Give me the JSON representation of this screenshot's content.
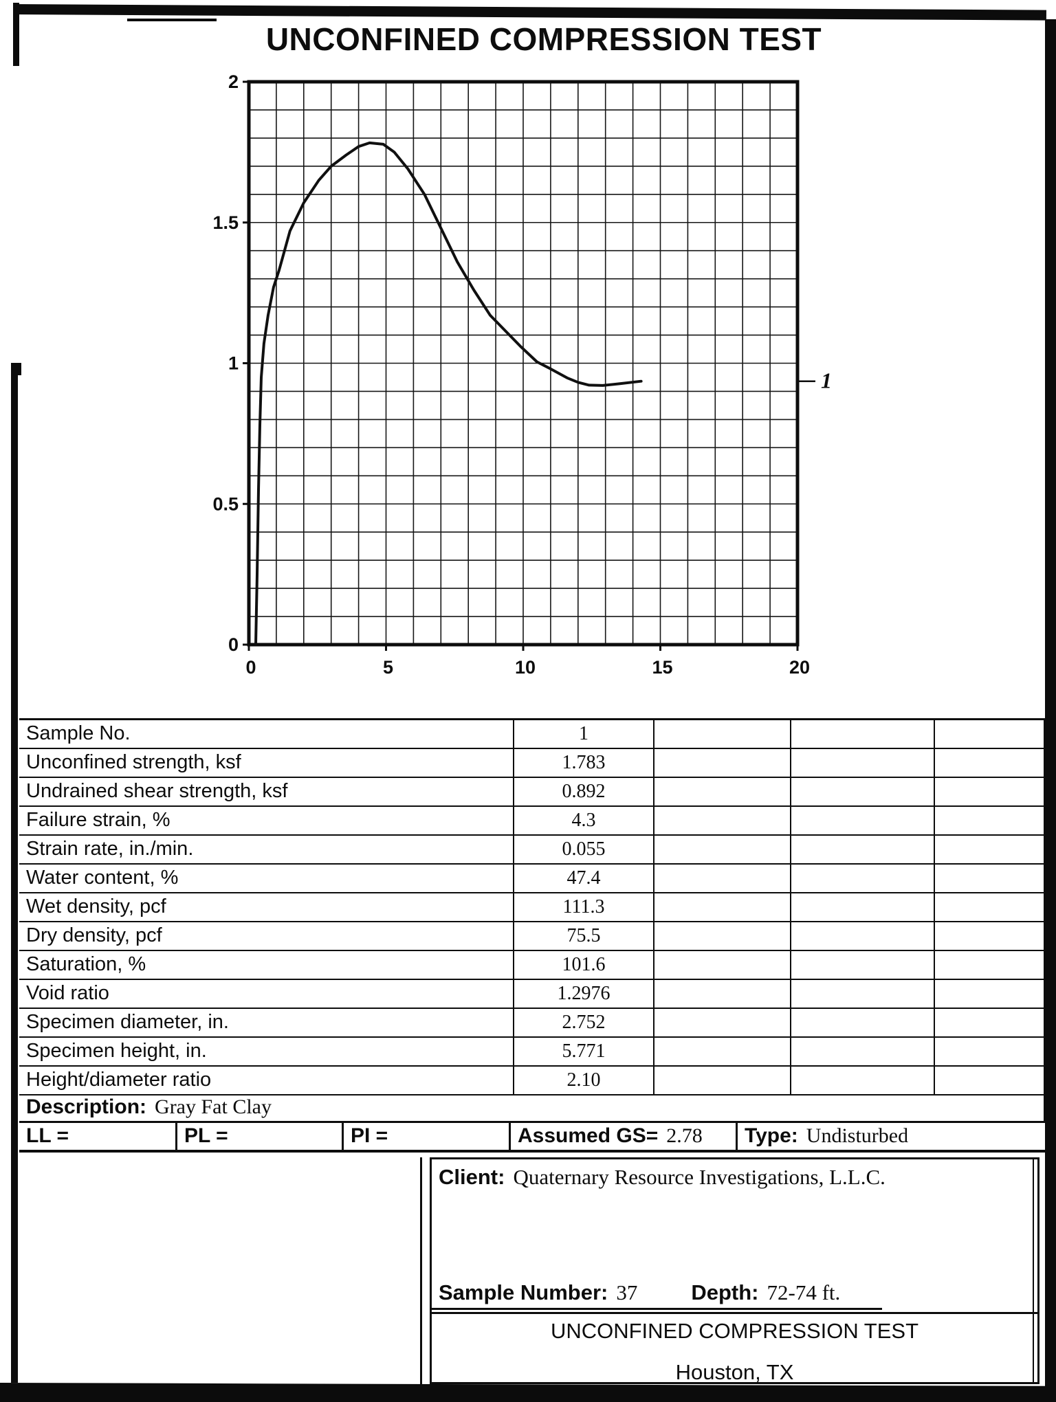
{
  "page_title": "UNCONFINED COMPRESSION TEST",
  "chart_data": {
    "type": "line",
    "title": "",
    "xlabel": "",
    "ylabel": "",
    "xlim": [
      0,
      20
    ],
    "ylim": [
      0,
      2
    ],
    "x_ticks": [
      0,
      5,
      10,
      15,
      20
    ],
    "y_ticks": [
      0,
      0.5,
      1,
      1.5,
      2
    ],
    "x_grid_step": 1,
    "y_grid_step": 0.1,
    "grid": true,
    "legend_position": "right",
    "series": [
      {
        "name": "1",
        "points": [
          [
            0.25,
            0
          ],
          [
            0.3,
            0.25
          ],
          [
            0.35,
            0.55
          ],
          [
            0.4,
            0.78
          ],
          [
            0.45,
            0.95
          ],
          [
            0.55,
            1.07
          ],
          [
            0.7,
            1.17
          ],
          [
            0.9,
            1.27
          ],
          [
            1.1,
            1.33
          ],
          [
            1.5,
            1.47
          ],
          [
            2.0,
            1.57
          ],
          [
            2.55,
            1.65
          ],
          [
            3.0,
            1.7
          ],
          [
            3.55,
            1.74
          ],
          [
            4.0,
            1.77
          ],
          [
            4.4,
            1.783
          ],
          [
            4.9,
            1.778
          ],
          [
            5.3,
            1.75
          ],
          [
            5.8,
            1.69
          ],
          [
            6.4,
            1.6
          ],
          [
            7.0,
            1.48
          ],
          [
            7.6,
            1.36
          ],
          [
            8.2,
            1.26
          ],
          [
            8.8,
            1.17
          ],
          [
            9.3,
            1.12
          ],
          [
            9.9,
            1.06
          ],
          [
            10.5,
            1.005
          ],
          [
            11.0,
            0.98
          ],
          [
            11.6,
            0.948
          ],
          [
            12.0,
            0.932
          ],
          [
            12.4,
            0.922
          ],
          [
            12.9,
            0.921
          ],
          [
            13.5,
            0.927
          ],
          [
            14.3,
            0.936
          ]
        ]
      }
    ]
  },
  "table": {
    "rows": [
      {
        "label": "Sample No.",
        "values": [
          "1",
          "",
          "",
          ""
        ]
      },
      {
        "label": "Unconfined strength, ksf",
        "values": [
          "1.783",
          "",
          "",
          ""
        ]
      },
      {
        "label": "Undrained shear strength, ksf",
        "values": [
          "0.892",
          "",
          "",
          ""
        ]
      },
      {
        "label": "Failure strain, %",
        "values": [
          "4.3",
          "",
          "",
          ""
        ]
      },
      {
        "label": "Strain rate, in./min.",
        "values": [
          "0.055",
          "",
          "",
          ""
        ]
      },
      {
        "label": "Water content, %",
        "values": [
          "47.4",
          "",
          "",
          ""
        ]
      },
      {
        "label": "Wet density, pcf",
        "values": [
          "111.3",
          "",
          "",
          ""
        ]
      },
      {
        "label": "Dry density, pcf",
        "values": [
          "75.5",
          "",
          "",
          ""
        ]
      },
      {
        "label": "Saturation, %",
        "values": [
          "101.6",
          "",
          "",
          ""
        ]
      },
      {
        "label": "Void ratio",
        "values": [
          "1.2976",
          "",
          "",
          ""
        ]
      },
      {
        "label": "Specimen diameter, in.",
        "values": [
          "2.752",
          "",
          "",
          ""
        ]
      },
      {
        "label": "Specimen height, in.",
        "values": [
          "5.771",
          "",
          "",
          ""
        ]
      },
      {
        "label": "Height/diameter ratio",
        "values": [
          "2.10",
          "",
          "",
          ""
        ]
      }
    ]
  },
  "description": {
    "label": "Description:",
    "value": "Gray Fat Clay"
  },
  "atterberg": {
    "ll_label": "LL =",
    "pl_label": "PL =",
    "pi_label": "PI =",
    "gs_label": "Assumed GS=",
    "gs_value": "2.78",
    "type_label": "Type:",
    "type_value": "Undisturbed"
  },
  "footer": {
    "client_label": "Client:",
    "client_value": "Quaternary Resource Investigations, L.L.C.",
    "sample_number_label": "Sample Number:",
    "sample_number_value": "37",
    "depth_label": "Depth:",
    "depth_value": "72-74 ft.",
    "test_title": "UNCONFINED COMPRESSION TEST",
    "location": "Houston, TX"
  },
  "colors": {
    "ink": "#0d0d0d"
  }
}
